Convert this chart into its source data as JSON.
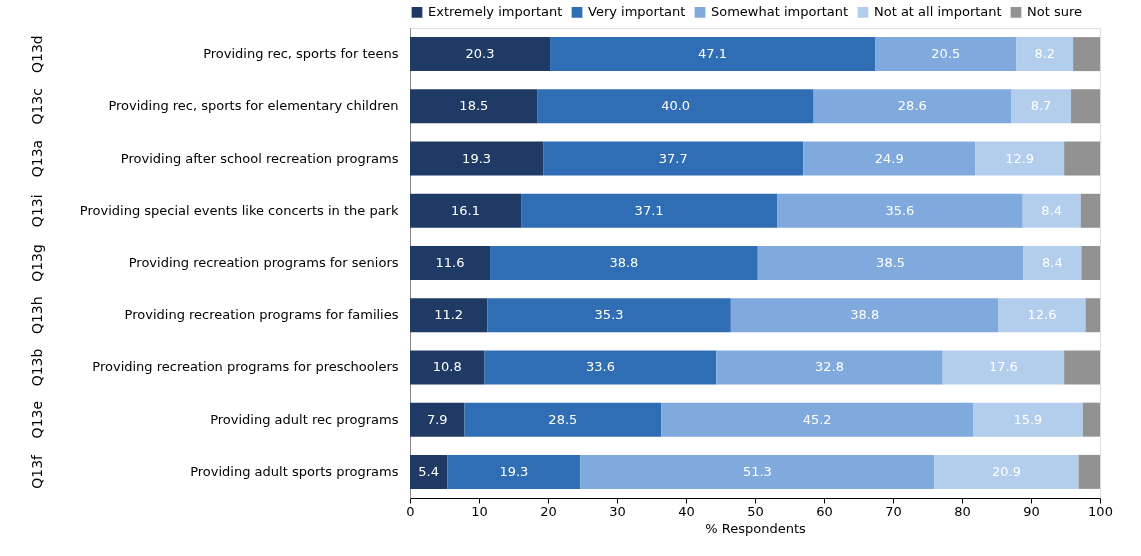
{
  "chart_data": {
    "type": "bar",
    "orientation": "horizontal",
    "stacked": true,
    "xlabel": "% Respondents",
    "legend": "top",
    "grid": false,
    "xlim": [
      0,
      100
    ],
    "xticks": [
      0,
      10,
      20,
      30,
      40,
      50,
      60,
      70,
      80,
      90,
      100
    ],
    "categories": [
      "Providing rec, sports for teens",
      "Providing rec, sports for elementary children",
      "Providing after school recreation programs",
      "Providing special events like concerts in the park",
      "Providing recreation programs for seniors",
      "Providing recreation programs for families",
      "Providing recreation programs for preschoolers",
      "Providing adult rec programs",
      "Providing adult sports programs"
    ],
    "annotations": [
      "Q13d",
      "Q13c",
      "Q13a",
      "Q13i",
      "Q13g",
      "Q13h",
      "Q13b",
      "Q13e",
      "Q13f"
    ],
    "series": [
      {
        "name": "Extremely important",
        "color": "#1f3a64",
        "values": [
          20.3,
          18.5,
          19.3,
          16.1,
          11.6,
          11.2,
          10.8,
          7.9,
          5.4
        ],
        "value_labels": [
          "20.3",
          "18.5",
          "19.3",
          "16.1",
          "11.6",
          "11.2",
          "10.8",
          "7.9",
          "5.4"
        ]
      },
      {
        "name": "Very important",
        "color": "#2f6db5",
        "values": [
          47.1,
          40.0,
          37.7,
          37.1,
          38.8,
          35.3,
          33.6,
          28.5,
          19.3
        ],
        "value_labels": [
          "47.1",
          "40.0",
          "37.7",
          "37.1",
          "38.8",
          "35.3",
          "33.6",
          "28.5",
          "19.3"
        ]
      },
      {
        "name": "Somewhat important",
        "color": "#80a9dd",
        "values": [
          20.5,
          28.6,
          24.9,
          35.6,
          38.5,
          38.8,
          32.8,
          45.2,
          51.3
        ],
        "value_labels": [
          "20.5",
          "28.6",
          "24.9",
          "35.6",
          "38.5",
          "38.8",
          "32.8",
          "45.2",
          "51.3"
        ]
      },
      {
        "name": "Not at all important",
        "color": "#b3cded",
        "values": [
          8.2,
          8.7,
          12.9,
          8.4,
          8.4,
          12.6,
          17.6,
          15.9,
          20.9
        ],
        "value_labels": [
          "8.2",
          "8.7",
          "12.9",
          "8.4",
          "8.4",
          "12.6",
          "17.6",
          "15.9",
          "20.9"
        ]
      },
      {
        "name": "Not sure",
        "color": "#929292",
        "values": [
          3.9,
          4.2,
          5.2,
          2.8,
          2.7,
          2.1,
          5.2,
          2.5,
          3.1
        ],
        "value_labels": [
          null,
          null,
          null,
          null,
          null,
          null,
          null,
          null,
          null
        ]
      }
    ]
  }
}
